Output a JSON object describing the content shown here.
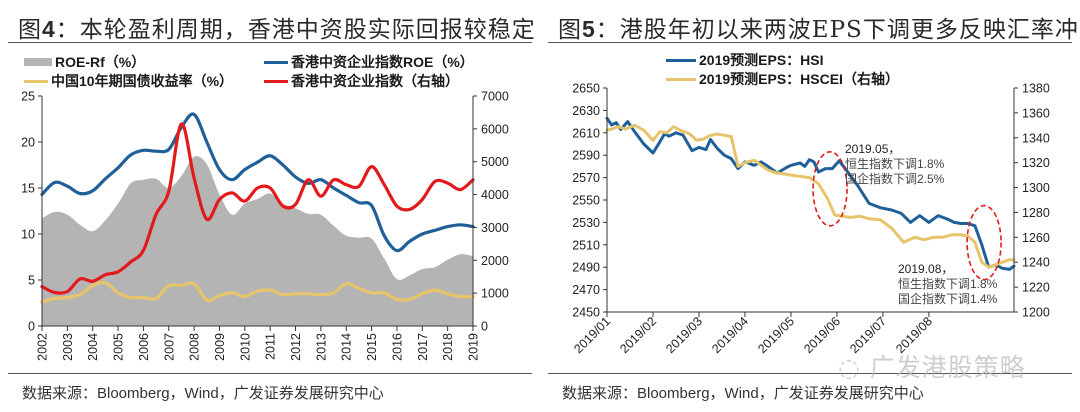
{
  "chart_data": [
    {
      "id": "fig4",
      "type": "line",
      "title_prefix": "图",
      "title_num": "4",
      "title_text": "：本轮盈利周期，香港中资股实际回报较稳定",
      "source": "数据来源：Bloomberg，Wind，广发证券发展研究中心",
      "x_tick_labels": [
        "2002",
        "2003",
        "2004",
        "2005",
        "2006",
        "2007",
        "2008",
        "2009",
        "2010",
        "2011",
        "2012",
        "2013",
        "2014",
        "2015",
        "2016",
        "2017",
        "2018",
        "2019"
      ],
      "x_range": [
        2002,
        2019
      ],
      "left_axis": {
        "range": [
          0,
          25
        ],
        "ticks": [
          "0",
          "5",
          "10",
          "15",
          "20",
          "25"
        ]
      },
      "right_axis": {
        "range": [
          0,
          7000
        ],
        "ticks": [
          "0",
          "1000",
          "2000",
          "3000",
          "4000",
          "5000",
          "6000",
          "7000"
        ]
      },
      "grid": false,
      "legend_position": "top",
      "series": [
        {
          "name": "ROE-Rf（%）",
          "kind": "area",
          "axis": "left",
          "color": "#b4b4b4",
          "x": [
            2002,
            2002.5,
            2003,
            2003.5,
            2004,
            2004.5,
            2005,
            2005.5,
            2006,
            2006.5,
            2007,
            2007.5,
            2008,
            2008.5,
            2009,
            2009.5,
            2010,
            2010.5,
            2011,
            2011.5,
            2012,
            2012.5,
            2013,
            2013.5,
            2014,
            2014.5,
            2015,
            2015.5,
            2016,
            2016.5,
            2017,
            2017.5,
            2018,
            2018.5,
            2019
          ],
          "values": [
            11.7,
            12.4,
            12.1,
            11,
            10.3,
            11.5,
            13.3,
            15.5,
            15.9,
            16,
            15,
            16.3,
            18.4,
            17.6,
            14.3,
            12.1,
            13.3,
            13.8,
            14.4,
            13.3,
            12.8,
            12.2,
            12.1,
            10.9,
            9.8,
            9.6,
            9.5,
            7.3,
            5.1,
            5.5,
            6.2,
            6.4,
            7.2,
            7.8,
            7.6
          ]
        },
        {
          "name": "香港中资企业指数ROE（%）",
          "kind": "line",
          "axis": "left",
          "color": "#1f5f9a",
          "x": [
            2002,
            2002.5,
            2003,
            2003.5,
            2004,
            2004.5,
            2005,
            2005.5,
            2006,
            2006.5,
            2007,
            2007.5,
            2008,
            2008.5,
            2009,
            2009.5,
            2010,
            2010.5,
            2011,
            2011.5,
            2012,
            2012.5,
            2013,
            2013.5,
            2014,
            2014.5,
            2015,
            2015.5,
            2016,
            2016.5,
            2017,
            2017.5,
            2018,
            2018.5,
            2019
          ],
          "values": [
            14.3,
            15.6,
            15.2,
            14.4,
            14.7,
            16,
            17.2,
            18.6,
            19.1,
            19,
            19.2,
            21.6,
            23,
            20,
            17,
            15.9,
            17,
            17.8,
            18.5,
            17.5,
            16.2,
            15.5,
            15.9,
            15,
            14.2,
            13.4,
            13.1,
            9.8,
            8.2,
            9.2,
            10,
            10.4,
            10.8,
            11,
            10.8
          ]
        },
        {
          "name": "中国10年期国债收益率（%）",
          "kind": "line",
          "axis": "left",
          "color": "#e6c56a",
          "x": [
            2002,
            2002.5,
            2003,
            2003.5,
            2004,
            2004.5,
            2005,
            2005.5,
            2006,
            2006.5,
            2007,
            2007.5,
            2008,
            2008.5,
            2009,
            2009.5,
            2010,
            2010.5,
            2011,
            2011.5,
            2012,
            2012.5,
            2013,
            2013.5,
            2014,
            2014.5,
            2015,
            2015.5,
            2016,
            2016.5,
            2017,
            2017.5,
            2018,
            2018.5,
            2019
          ],
          "values": [
            2.6,
            3,
            3.1,
            3.4,
            4.4,
            4.7,
            3.6,
            3.1,
            3.1,
            3,
            4.4,
            4.4,
            4.6,
            2.8,
            3.3,
            3.6,
            3.2,
            3.8,
            3.9,
            3.4,
            3.5,
            3.5,
            3.4,
            3.6,
            4.6,
            4.1,
            3.6,
            3.6,
            2.9,
            2.9,
            3.5,
            3.9,
            3.5,
            3.2,
            3.2
          ]
        },
        {
          "name": "香港中资企业指数（右轴）",
          "kind": "line",
          "axis": "right",
          "color": "#e31a1c",
          "x": [
            2002,
            2002.5,
            2003,
            2003.5,
            2004,
            2004.5,
            2005,
            2005.5,
            2006,
            2006.5,
            2007,
            2007.5,
            2008,
            2008.5,
            2009,
            2009.5,
            2010,
            2010.5,
            2011,
            2011.5,
            2012,
            2012.5,
            2013,
            2013.5,
            2014,
            2014.5,
            2015,
            2015.5,
            2016,
            2016.5,
            2017,
            2017.5,
            2018,
            2018.5,
            2019
          ],
          "values": [
            1200,
            1020,
            1050,
            1430,
            1360,
            1560,
            1650,
            1950,
            2300,
            3400,
            4100,
            6150,
            4500,
            3250,
            3850,
            4050,
            3800,
            4200,
            4200,
            3650,
            3700,
            4450,
            3950,
            4450,
            4300,
            4250,
            4850,
            4300,
            3650,
            3550,
            3850,
            4400,
            4350,
            4150,
            4450
          ]
        }
      ]
    },
    {
      "id": "fig5",
      "type": "line",
      "title_prefix": "图",
      "title_num": "5",
      "title_text": "：港股年初以来两波EPS下调更多反映汇率冲击",
      "source": "数据来源：Bloomberg，Wind，广发证券发展研究中心",
      "x_tick_labels": [
        "2019/01",
        "2019/02",
        "2019/03",
        "2019/04",
        "2019/05",
        "2019/06",
        "2019/07",
        "2019/08"
      ],
      "x_range": [
        0,
        8.85
      ],
      "left_axis": {
        "range": [
          2450,
          2650
        ],
        "ticks": [
          "2450",
          "2470",
          "2490",
          "2510",
          "2530",
          "2550",
          "2570",
          "2590",
          "2610",
          "2630",
          "2650"
        ]
      },
      "right_axis": {
        "range": [
          1200,
          1380
        ],
        "ticks": [
          "1200",
          "1220",
          "1240",
          "1260",
          "1280",
          "1300",
          "1320",
          "1340",
          "1360",
          "1380"
        ]
      },
      "grid": false,
      "legend_position": "top",
      "series": [
        {
          "name": "2019预测EPS：HSI",
          "kind": "line",
          "axis": "left",
          "color": "#1f5f9a",
          "x": [
            0,
            0.1,
            0.2,
            0.3,
            0.45,
            0.6,
            0.8,
            1.0,
            1.15,
            1.25,
            1.35,
            1.5,
            1.65,
            1.85,
            2.0,
            2.15,
            2.25,
            2.4,
            2.55,
            2.7,
            2.85,
            3.0,
            3.2,
            3.35,
            3.5,
            3.7,
            3.9,
            4.0,
            4.2,
            4.3,
            4.4,
            4.5,
            4.6,
            4.75,
            4.9,
            5.05,
            5.2,
            5.45,
            5.7,
            5.95,
            6.2,
            6.4,
            6.6,
            6.8,
            7.0,
            7.2,
            7.4,
            7.55,
            7.7,
            7.85,
            8.0,
            8.15,
            8.3,
            8.45,
            8.6,
            8.75,
            8.85
          ],
          "values": [
            2623,
            2617,
            2619,
            2613,
            2620,
            2611,
            2600,
            2592,
            2602,
            2609,
            2607,
            2610,
            2608,
            2594,
            2597,
            2595,
            2604,
            2596,
            2590,
            2587,
            2578,
            2584,
            2581,
            2584,
            2580,
            2574,
            2579,
            2581,
            2583,
            2580,
            2586,
            2584,
            2575,
            2578,
            2578,
            2585,
            2577,
            2563,
            2547,
            2543,
            2541,
            2538,
            2530,
            2536,
            2530,
            2536,
            2533,
            2530,
            2529,
            2529,
            2527,
            2510,
            2490,
            2492,
            2489,
            2488,
            2491
          ]
        },
        {
          "name": "2019预测EPS：HSCEI（右轴）",
          "kind": "line",
          "axis": "right",
          "color": "#e6c56a",
          "x": [
            0,
            0.1,
            0.25,
            0.4,
            0.6,
            0.8,
            1.0,
            1.15,
            1.3,
            1.45,
            1.6,
            1.8,
            1.95,
            2.1,
            2.25,
            2.4,
            2.55,
            2.7,
            2.85,
            3.0,
            3.2,
            3.35,
            3.5,
            3.65,
            3.85,
            4.0,
            4.2,
            4.4,
            4.6,
            4.8,
            4.95,
            5.1,
            5.3,
            5.5,
            5.7,
            5.95,
            6.2,
            6.45,
            6.7,
            6.9,
            7.1,
            7.3,
            7.5,
            7.7,
            7.85,
            8.0,
            8.15,
            8.3,
            8.45,
            8.6,
            8.75,
            8.85
          ],
          "values": [
            1346,
            1347,
            1349,
            1347,
            1350,
            1346,
            1338,
            1345,
            1344,
            1349,
            1346,
            1343,
            1338,
            1339,
            1342,
            1343,
            1342,
            1341,
            1317,
            1320,
            1322,
            1318,
            1314,
            1312,
            1311,
            1310,
            1309,
            1308,
            1303,
            1291,
            1278,
            1277,
            1276,
            1277,
            1275,
            1274,
            1267,
            1256,
            1260,
            1258,
            1260,
            1260,
            1262,
            1262,
            1261,
            1256,
            1240,
            1236,
            1238,
            1240,
            1242,
            1242
          ]
        }
      ],
      "annotations": [
        {
          "lines": [
            "2019.05，",
            "恒生指数下调1.8%",
            "国企指数下调2.5%"
          ],
          "ellipse_center": [
            4.85,
            2560
          ],
          "color": "#e31a1c"
        },
        {
          "lines": [
            "2019.08，",
            "恒生指数下调1.8%",
            "国企指数下调1.4%"
          ],
          "ellipse_center": [
            8.2,
            2512
          ],
          "color": "#e31a1c"
        }
      ]
    }
  ],
  "watermark": "广发港股策略"
}
